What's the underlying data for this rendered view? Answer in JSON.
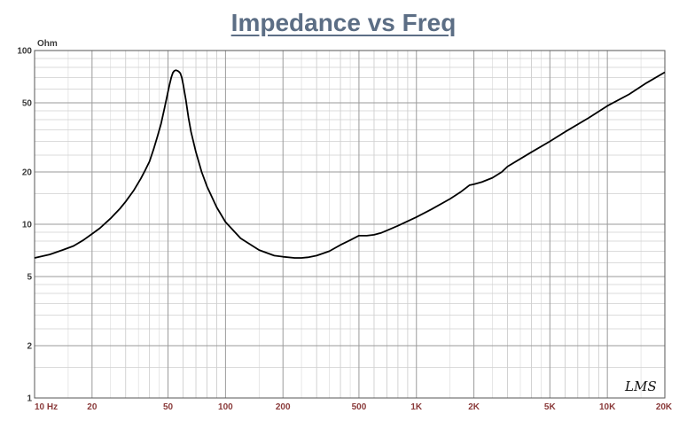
{
  "chart_data": {
    "type": "line",
    "title": "Impedance vs Freq",
    "ylabel": "Ohm",
    "xscale": "log",
    "yscale": "log",
    "xlim": [
      10,
      20000
    ],
    "ylim": [
      1,
      100
    ],
    "grid": true,
    "x_ticks": [
      {
        "value": 10,
        "label": "10  Hz"
      },
      {
        "value": 20,
        "label": "20"
      },
      {
        "value": 50,
        "label": "50"
      },
      {
        "value": 100,
        "label": "100"
      },
      {
        "value": 200,
        "label": "200"
      },
      {
        "value": 500,
        "label": "500"
      },
      {
        "value": 1000,
        "label": "1K"
      },
      {
        "value": 2000,
        "label": "2K"
      },
      {
        "value": 5000,
        "label": "5K"
      },
      {
        "value": 10000,
        "label": "10K"
      },
      {
        "value": 20000,
        "label": "20K"
      }
    ],
    "y_ticks": [
      {
        "value": 100,
        "label": "100"
      },
      {
        "value": 50,
        "label": "50"
      },
      {
        "value": 20,
        "label": "20"
      },
      {
        "value": 10,
        "label": "10"
      },
      {
        "value": 5,
        "label": "5"
      },
      {
        "value": 2,
        "label": "2"
      },
      {
        "value": 1,
        "label": "1"
      }
    ],
    "series": [
      {
        "color": "#000000",
        "x": [
          10,
          12,
          14,
          16,
          18,
          20,
          22,
          25,
          28,
          30,
          33,
          36,
          38,
          40,
          42,
          44,
          46,
          48,
          50,
          51,
          52,
          53,
          54,
          55,
          56,
          57,
          58,
          59,
          60,
          62,
          64,
          66,
          70,
          75,
          80,
          90,
          100,
          120,
          150,
          180,
          200,
          230,
          250,
          270,
          300,
          350,
          400,
          450,
          500,
          550,
          600,
          650,
          700,
          800,
          1000,
          1200,
          1500,
          1700,
          1900,
          2000,
          2200,
          2500,
          2800,
          3000,
          4000,
          5000,
          6000,
          8000,
          10000,
          13000,
          16000,
          20000
        ],
        "y": [
          6.4,
          6.7,
          7.1,
          7.5,
          8.1,
          8.8,
          9.5,
          10.8,
          12.3,
          13.5,
          15.6,
          18.3,
          20.5,
          23.0,
          27.0,
          32.0,
          38.0,
          47.0,
          58.0,
          64.0,
          70.0,
          74.5,
          76.5,
          77.0,
          76.5,
          75.5,
          74.0,
          70.0,
          64.0,
          52.0,
          41.0,
          34.0,
          26.0,
          20.0,
          16.5,
          12.5,
          10.3,
          8.3,
          7.1,
          6.6,
          6.5,
          6.4,
          6.4,
          6.45,
          6.6,
          7.0,
          7.6,
          8.1,
          8.6,
          8.6,
          8.7,
          8.9,
          9.2,
          9.8,
          11.0,
          12.2,
          14.0,
          15.3,
          16.8,
          17.0,
          17.5,
          18.5,
          20.0,
          21.5,
          26.0,
          30.0,
          34.0,
          41.0,
          48.0,
          56.0,
          65.0,
          75.0
        ]
      }
    ]
  },
  "logo": "LMS"
}
